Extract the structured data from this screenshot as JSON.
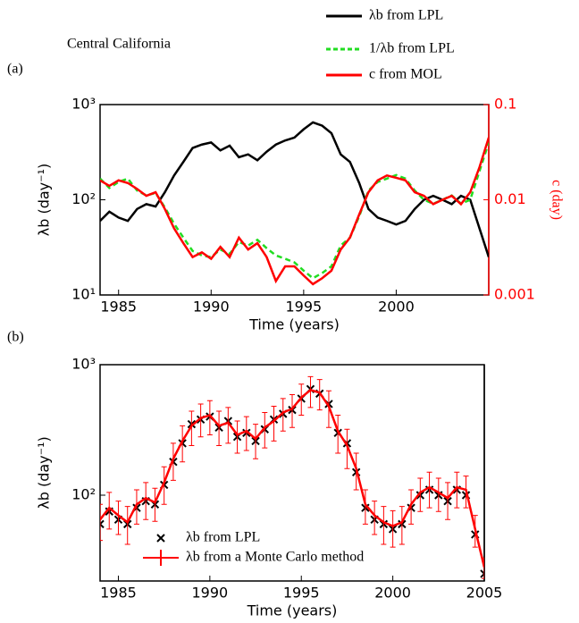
{
  "chart_data": [
    {
      "type": "line",
      "panel_label": "(a)",
      "annotation": "Central California",
      "x_label": "Time (years)",
      "y_label": "λb (day⁻¹)",
      "y2_label": "c (day)",
      "x": [
        1984,
        1984.5,
        1985,
        1985.5,
        1986,
        1986.5,
        1987,
        1987.5,
        1988,
        1988.5,
        1989,
        1989.5,
        1990,
        1990.5,
        1991,
        1991.5,
        1992,
        1992.5,
        1993,
        1993.5,
        1994,
        1994.5,
        1995,
        1995.5,
        1996,
        1996.5,
        1997,
        1997.5,
        1998,
        1998.5,
        1999,
        1999.5,
        2000,
        2000.5,
        2001,
        2001.5,
        2002,
        2002.5,
        2003,
        2003.5,
        2004,
        2004.5,
        2005
      ],
      "xlim": [
        1984,
        2005
      ],
      "xticks": [
        1985,
        1990,
        1995,
        2000
      ],
      "ylim": [
        10,
        1000
      ],
      "log_y": true,
      "yticks": [
        {
          "value": 10,
          "label": "10¹"
        },
        {
          "value": 100,
          "label": "10²"
        },
        {
          "value": 1000,
          "label": "10³"
        }
      ],
      "y2lim": [
        0.001,
        0.1
      ],
      "y2ticks": [
        0.001,
        0.01,
        0.1
      ],
      "y2_color": "#ff0000",
      "legend": "outside-top-right",
      "series": [
        {
          "name": "λb from LPL",
          "color": "#000000",
          "dash": false,
          "values": [
            60,
            75,
            65,
            60,
            80,
            90,
            85,
            120,
            180,
            250,
            350,
            380,
            400,
            330,
            370,
            280,
            300,
            260,
            320,
            380,
            420,
            450,
            550,
            650,
            600,
            500,
            300,
            250,
            150,
            80,
            65,
            60,
            55,
            60,
            80,
            100,
            110,
            100,
            90,
            110,
            100,
            50,
            25
          ]
        },
        {
          "name": "1/λb from LPL",
          "color": "#22dd22",
          "dash": true,
          "axis": "y2",
          "values": [
            0.0167,
            0.0133,
            0.0154,
            0.0167,
            0.0125,
            0.0111,
            0.0118,
            0.0083,
            0.0056,
            0.004,
            0.0029,
            0.0026,
            0.0025,
            0.003,
            0.0027,
            0.0036,
            0.0033,
            0.0038,
            0.0031,
            0.0026,
            0.0024,
            0.0022,
            0.0018,
            0.0015,
            0.0017,
            0.002,
            0.0033,
            0.004,
            0.0067,
            0.0125,
            0.0154,
            0.0167,
            0.0182,
            0.0167,
            0.0125,
            0.01,
            0.0091,
            0.01,
            0.0111,
            0.0091,
            0.01,
            0.02,
            0.04
          ]
        },
        {
          "name": "c from MOL",
          "color": "#ff0000",
          "dash": false,
          "axis": "y2",
          "values": [
            0.016,
            0.014,
            0.016,
            0.015,
            0.013,
            0.011,
            0.012,
            0.008,
            0.005,
            0.0035,
            0.0025,
            0.0028,
            0.0024,
            0.0032,
            0.0025,
            0.004,
            0.003,
            0.0035,
            0.0025,
            0.0014,
            0.002,
            0.002,
            0.0016,
            0.0013,
            0.0015,
            0.0018,
            0.003,
            0.004,
            0.007,
            0.012,
            0.016,
            0.018,
            0.017,
            0.016,
            0.012,
            0.011,
            0.009,
            0.01,
            0.011,
            0.009,
            0.012,
            0.022,
            0.045
          ]
        }
      ]
    },
    {
      "type": "errorbar",
      "panel_label": "(b)",
      "x_label": "Time (years)",
      "y_label": "λb (day⁻¹)",
      "x": [
        1984,
        1984.5,
        1985,
        1985.5,
        1986,
        1986.5,
        1987,
        1987.5,
        1988,
        1988.5,
        1989,
        1989.5,
        1990,
        1990.5,
        1991,
        1991.5,
        1992,
        1992.5,
        1993,
        1993.5,
        1994,
        1994.5,
        1995,
        1995.5,
        1996,
        1996.5,
        1997,
        1997.5,
        1998,
        1998.5,
        1999,
        1999.5,
        2000,
        2000.5,
        2001,
        2001.5,
        2002,
        2002.5,
        2003,
        2003.5,
        2004,
        2004.5,
        2005
      ],
      "xlim": [
        1984,
        2005
      ],
      "xticks": [
        1985,
        1990,
        1995,
        2000,
        2005
      ],
      "ylim": [
        22,
        1000
      ],
      "log_y": true,
      "yticks": [
        {
          "value": 100,
          "label": "10²"
        },
        {
          "value": 1000,
          "label": "10³"
        }
      ],
      "legend": "lower-left",
      "series": [
        {
          "name": "λb from LPL",
          "color": "#000000",
          "marker": "x",
          "values": [
            60,
            75,
            65,
            60,
            80,
            90,
            85,
            120,
            180,
            250,
            350,
            380,
            400,
            330,
            370,
            280,
            300,
            260,
            320,
            380,
            420,
            450,
            550,
            650,
            600,
            500,
            300,
            250,
            150,
            80,
            65,
            60,
            55,
            60,
            80,
            100,
            110,
            100,
            90,
            110,
            100,
            50,
            25
          ]
        },
        {
          "name": "λb from a Monte Carlo method",
          "color": "#ff0000",
          "marker": "errorbar",
          "values": [
            65,
            80,
            70,
            62,
            85,
            95,
            88,
            125,
            190,
            260,
            340,
            390,
            410,
            340,
            360,
            290,
            310,
            270,
            330,
            370,
            430,
            460,
            560,
            640,
            610,
            480,
            310,
            240,
            160,
            85,
            70,
            62,
            58,
            62,
            85,
            105,
            115,
            105,
            95,
            115,
            110,
            55,
            28
          ],
          "errors": [
            20,
            25,
            20,
            20,
            25,
            30,
            25,
            40,
            60,
            80,
            100,
            110,
            120,
            100,
            110,
            80,
            90,
            80,
            100,
            110,
            120,
            130,
            150,
            170,
            160,
            150,
            100,
            80,
            50,
            25,
            20,
            20,
            18,
            20,
            25,
            30,
            35,
            30,
            30,
            35,
            30,
            15,
            5
          ]
        }
      ]
    }
  ]
}
